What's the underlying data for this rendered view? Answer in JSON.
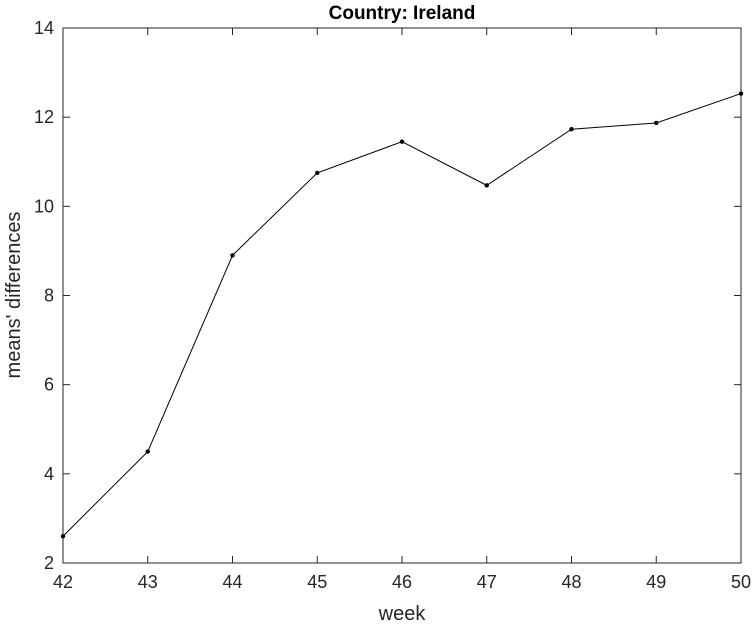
{
  "chart_data": {
    "type": "line",
    "title": "Country: Ireland",
    "xlabel": "week",
    "ylabel": "means' differences",
    "x": [
      42,
      43,
      44,
      45,
      46,
      47,
      48,
      49,
      50
    ],
    "series": [
      {
        "values": [
          2.6,
          4.5,
          8.9,
          10.75,
          11.45,
          10.47,
          11.73,
          11.87,
          12.53
        ]
      }
    ],
    "xlim": [
      42,
      50
    ],
    "ylim": [
      2,
      14
    ],
    "xticks": [
      42,
      43,
      44,
      45,
      46,
      47,
      48,
      49,
      50
    ],
    "yticks": [
      2,
      4,
      6,
      8,
      10,
      12,
      14
    ],
    "grid": false,
    "line_color": "#000000",
    "marker": "dot"
  }
}
